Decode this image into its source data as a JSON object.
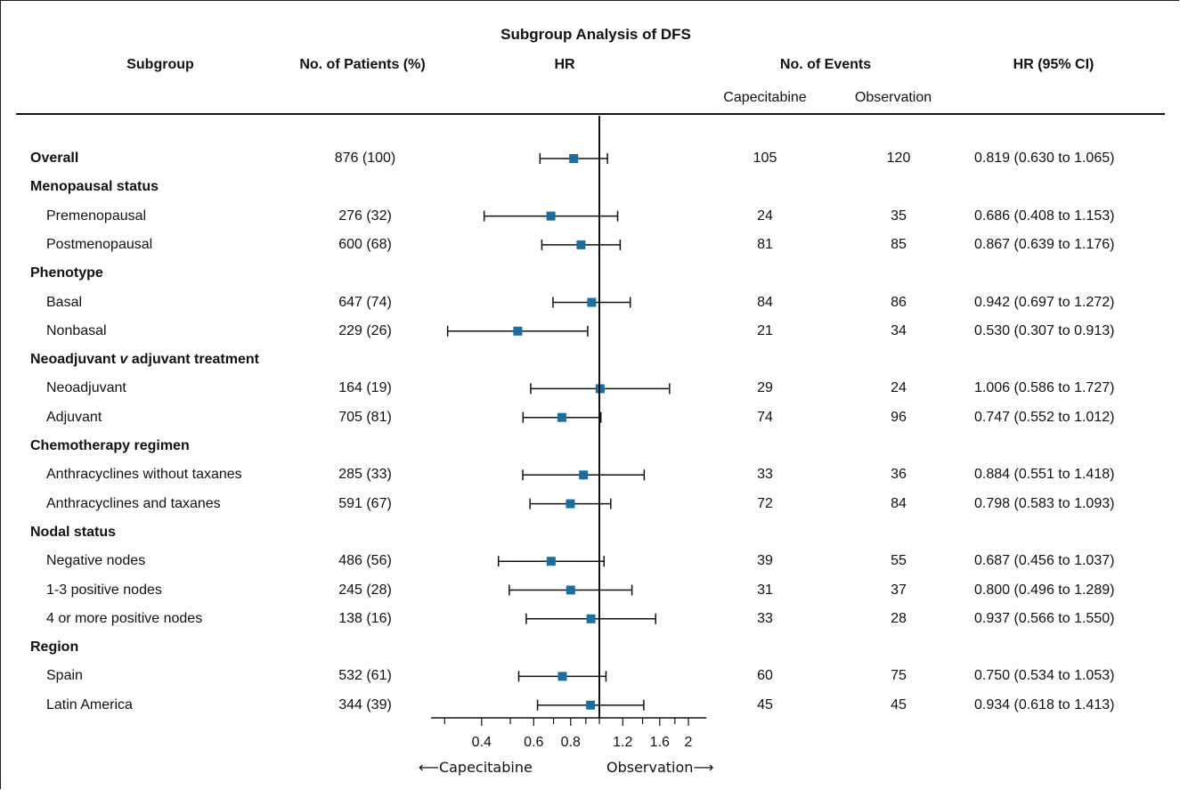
{
  "title": "Subgroup Analysis of DFS",
  "headers": {
    "subgroup": "Subgroup",
    "patients": "No. of Patients (%)",
    "hr": "HR",
    "events": "No. of Events",
    "capecitabine": "Capecitabine",
    "observation": "Observation",
    "ci": "HR (95% CI)"
  },
  "direction_labels": {
    "left": "Capecitabine",
    "right": "Observation"
  },
  "colors": {
    "marker": "#1a6fa0",
    "line": "#111111"
  },
  "chart_data": {
    "type": "forest",
    "title": "Subgroup Analysis of DFS",
    "x_scale": "log",
    "reference_line": 1.0,
    "xlim": [
      0.27,
      2.3
    ],
    "x_ticks": [
      "0.4",
      "0.6",
      "0.8",
      "1.2",
      "1.6",
      "2"
    ],
    "x_tick_values": [
      0.4,
      0.6,
      0.8,
      1.2,
      1.6,
      2.0
    ],
    "x_minor_ticks": [
      0.3,
      0.5,
      0.7,
      0.9,
      1.0,
      1.4,
      1.8
    ],
    "rows": [
      {
        "label": "Overall",
        "kind": "group",
        "patients": "876 (100)",
        "cap_events": "105",
        "obs_events": "120",
        "hr": 0.819,
        "lo": 0.63,
        "hi": 1.065,
        "ci_text": "0.819 (0.630 to 1.065)"
      },
      {
        "label": "Menopausal status",
        "kind": "header"
      },
      {
        "label": "Premenopausal",
        "kind": "sub",
        "patients": "276 (32)",
        "cap_events": "24",
        "obs_events": "35",
        "hr": 0.686,
        "lo": 0.408,
        "hi": 1.153,
        "ci_text": "0.686 (0.408 to 1.153)"
      },
      {
        "label": "Postmenopausal",
        "kind": "sub",
        "patients": "600 (68)",
        "cap_events": "81",
        "obs_events": "85",
        "hr": 0.867,
        "lo": 0.639,
        "hi": 1.176,
        "ci_text": "0.867 (0.639 to 1.176)"
      },
      {
        "label": "Phenotype",
        "kind": "header"
      },
      {
        "label": "Basal",
        "kind": "sub",
        "patients": "647 (74)",
        "cap_events": "84",
        "obs_events": "86",
        "hr": 0.942,
        "lo": 0.697,
        "hi": 1.272,
        "ci_text": "0.942 (0.697 to 1.272)"
      },
      {
        "label": "Nonbasal",
        "kind": "sub",
        "patients": "229 (26)",
        "cap_events": "21",
        "obs_events": "34",
        "hr": 0.53,
        "lo": 0.307,
        "hi": 0.913,
        "ci_text": "0.530 (0.307 to 0.913)"
      },
      {
        "label_parts": [
          "Neoadjuvant ",
          "v",
          " adjuvant treatment"
        ],
        "label": "Neoadjuvant v adjuvant treatment",
        "kind": "header"
      },
      {
        "label": "Neoadjuvant",
        "kind": "sub",
        "patients": "164 (19)",
        "cap_events": "29",
        "obs_events": "24",
        "hr": 1.006,
        "lo": 0.586,
        "hi": 1.727,
        "ci_text": "1.006 (0.586 to 1.727)"
      },
      {
        "label": "Adjuvant",
        "kind": "sub",
        "patients": "705 (81)",
        "cap_events": "74",
        "obs_events": "96",
        "hr": 0.747,
        "lo": 0.552,
        "hi": 1.012,
        "ci_text": "0.747 (0.552 to 1.012)"
      },
      {
        "label": "Chemotherapy regimen",
        "kind": "header"
      },
      {
        "label": "Anthracyclines without taxanes",
        "kind": "sub",
        "patients": "285 (33)",
        "cap_events": "33",
        "obs_events": "36",
        "hr": 0.884,
        "lo": 0.551,
        "hi": 1.418,
        "ci_text": "0.884 (0.551 to 1.418)"
      },
      {
        "label": "Anthracyclines and taxanes",
        "kind": "sub",
        "patients": "591 (67)",
        "cap_events": "72",
        "obs_events": "84",
        "hr": 0.798,
        "lo": 0.583,
        "hi": 1.093,
        "ci_text": "0.798 (0.583 to 1.093)"
      },
      {
        "label": "Nodal status",
        "kind": "header"
      },
      {
        "label": "Negative nodes",
        "kind": "sub",
        "patients": "486 (56)",
        "cap_events": "39",
        "obs_events": "55",
        "hr": 0.687,
        "lo": 0.456,
        "hi": 1.037,
        "ci_text": "0.687 (0.456 to 1.037)"
      },
      {
        "label": "1-3 positive nodes",
        "kind": "sub",
        "patients": "245 (28)",
        "cap_events": "31",
        "obs_events": "37",
        "hr": 0.8,
        "lo": 0.496,
        "hi": 1.289,
        "ci_text": "0.800 (0.496 to 1.289)"
      },
      {
        "label": "4 or more positive nodes",
        "kind": "sub",
        "patients": "138 (16)",
        "cap_events": "33",
        "obs_events": "28",
        "hr": 0.937,
        "lo": 0.566,
        "hi": 1.55,
        "ci_text": "0.937 (0.566 to 1.550)"
      },
      {
        "label": "Region",
        "kind": "header"
      },
      {
        "label": "Spain",
        "kind": "sub",
        "patients": "532 (61)",
        "cap_events": "60",
        "obs_events": "75",
        "hr": 0.75,
        "lo": 0.534,
        "hi": 1.053,
        "ci_text": "0.750 (0.534 to 1.053)"
      },
      {
        "label": "Latin America",
        "kind": "sub",
        "patients": "344 (39)",
        "cap_events": "45",
        "obs_events": "45",
        "hr": 0.934,
        "lo": 0.618,
        "hi": 1.413,
        "ci_text": "0.934 (0.618 to 1.413)"
      }
    ]
  }
}
